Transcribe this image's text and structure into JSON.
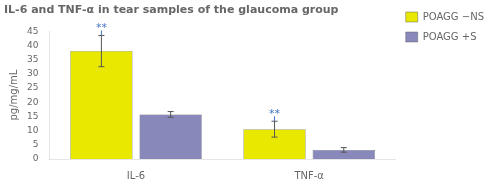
{
  "chart_data": {
    "type": "bar",
    "title": "IL-6 and TNF-α in tear samples of the glaucoma group",
    "ylabel": "pg/mg/mL",
    "categories": [
      "IL-6",
      "TNF-α"
    ],
    "series": [
      {
        "name": "POAGG −NS",
        "color": "#E8E800",
        "values": [
          38.0,
          10.5
        ],
        "errors": [
          5.5,
          2.8
        ]
      },
      {
        "name": "POAGG +S",
        "color": "#8888BB",
        "values": [
          15.7,
          3.2
        ],
        "errors": [
          1.0,
          0.8
        ]
      }
    ],
    "annotations": [
      {
        "text": "**",
        "category": "IL-6",
        "series": "POAGG −NS",
        "color": "#4472C4"
      },
      {
        "text": "**",
        "category": "TNF-α",
        "series": "POAGG −NS",
        "color": "#4472C4"
      }
    ],
    "ylim": [
      0,
      45
    ],
    "yticks": [
      0,
      5,
      10,
      15,
      20,
      25,
      30,
      35,
      40,
      45
    ],
    "grid": false,
    "legend": "right"
  }
}
